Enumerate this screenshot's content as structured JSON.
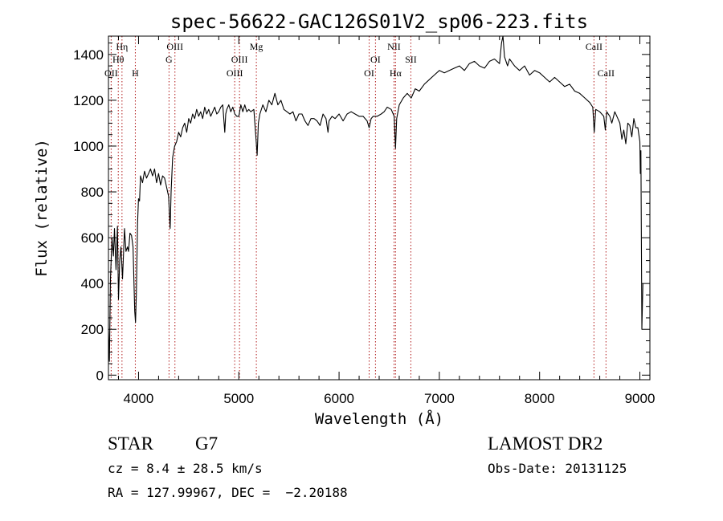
{
  "chart_data": {
    "type": "line",
    "title": "spec-56622-GAC126S01V2_sp06-223.fits",
    "xlabel": "Wavelength (Å)",
    "ylabel": "Flux (relative)",
    "xlim": [
      3700,
      9100
    ],
    "ylim": [
      -20,
      1480
    ],
    "xticks": [
      4000,
      5000,
      6000,
      7000,
      8000,
      9000
    ],
    "yticks": [
      0,
      200,
      400,
      600,
      800,
      1000,
      1200,
      1400
    ],
    "xtick_labels": [
      "4000",
      "5000",
      "6000",
      "7000",
      "8000",
      "9000"
    ],
    "ytick_labels": [
      "0",
      "200",
      "400",
      "600",
      "800",
      "1000",
      "1200",
      "1400"
    ],
    "grid": false,
    "series": [
      {
        "color": "#000000",
        "points": [
          [
            3700,
            200
          ],
          [
            3710,
            60
          ],
          [
            3720,
            420
          ],
          [
            3735,
            600
          ],
          [
            3750,
            520
          ],
          [
            3760,
            640
          ],
          [
            3775,
            460
          ],
          [
            3790,
            650
          ],
          [
            3800,
            330
          ],
          [
            3812,
            500
          ],
          [
            3825,
            560
          ],
          [
            3840,
            420
          ],
          [
            3860,
            640
          ],
          [
            3875,
            540
          ],
          [
            3890,
            560
          ],
          [
            3900,
            540
          ],
          [
            3915,
            620
          ],
          [
            3930,
            610
          ],
          [
            3945,
            560
          ],
          [
            3955,
            400
          ],
          [
            3962,
            280
          ],
          [
            3970,
            230
          ],
          [
            3978,
            350
          ],
          [
            3990,
            660
          ],
          [
            4000,
            770
          ],
          [
            4010,
            760
          ],
          [
            4020,
            870
          ],
          [
            4040,
            840
          ],
          [
            4060,
            890
          ],
          [
            4080,
            860
          ],
          [
            4100,
            880
          ],
          [
            4120,
            900
          ],
          [
            4140,
            870
          ],
          [
            4160,
            900
          ],
          [
            4180,
            840
          ],
          [
            4200,
            880
          ],
          [
            4220,
            830
          ],
          [
            4240,
            870
          ],
          [
            4260,
            860
          ],
          [
            4280,
            820
          ],
          [
            4300,
            780
          ],
          [
            4315,
            640
          ],
          [
            4325,
            800
          ],
          [
            4340,
            950
          ],
          [
            4360,
            1000
          ],
          [
            4380,
            1020
          ],
          [
            4400,
            1060
          ],
          [
            4420,
            1040
          ],
          [
            4440,
            1080
          ],
          [
            4460,
            1100
          ],
          [
            4480,
            1060
          ],
          [
            4500,
            1120
          ],
          [
            4520,
            1100
          ],
          [
            4540,
            1140
          ],
          [
            4560,
            1120
          ],
          [
            4580,
            1160
          ],
          [
            4600,
            1130
          ],
          [
            4620,
            1150
          ],
          [
            4640,
            1120
          ],
          [
            4660,
            1170
          ],
          [
            4680,
            1140
          ],
          [
            4700,
            1160
          ],
          [
            4720,
            1130
          ],
          [
            4740,
            1150
          ],
          [
            4760,
            1170
          ],
          [
            4780,
            1140
          ],
          [
            4800,
            1150
          ],
          [
            4820,
            1170
          ],
          [
            4840,
            1180
          ],
          [
            4860,
            1060
          ],
          [
            4870,
            1140
          ],
          [
            4880,
            1160
          ],
          [
            4900,
            1180
          ],
          [
            4920,
            1150
          ],
          [
            4940,
            1170
          ],
          [
            4960,
            1140
          ],
          [
            4980,
            1130
          ],
          [
            5000,
            1130
          ],
          [
            5020,
            1180
          ],
          [
            5040,
            1150
          ],
          [
            5060,
            1180
          ],
          [
            5080,
            1150
          ],
          [
            5100,
            1160
          ],
          [
            5120,
            1150
          ],
          [
            5150,
            1160
          ],
          [
            5170,
            1040
          ],
          [
            5183,
            960
          ],
          [
            5195,
            1100
          ],
          [
            5210,
            1140
          ],
          [
            5240,
            1180
          ],
          [
            5270,
            1150
          ],
          [
            5300,
            1200
          ],
          [
            5330,
            1180
          ],
          [
            5360,
            1230
          ],
          [
            5390,
            1180
          ],
          [
            5420,
            1200
          ],
          [
            5450,
            1160
          ],
          [
            5480,
            1150
          ],
          [
            5510,
            1140
          ],
          [
            5540,
            1150
          ],
          [
            5570,
            1110
          ],
          [
            5600,
            1140
          ],
          [
            5630,
            1140
          ],
          [
            5660,
            1110
          ],
          [
            5690,
            1090
          ],
          [
            5720,
            1120
          ],
          [
            5750,
            1120
          ],
          [
            5780,
            1110
          ],
          [
            5810,
            1090
          ],
          [
            5840,
            1140
          ],
          [
            5870,
            1120
          ],
          [
            5890,
            1060
          ],
          [
            5900,
            1110
          ],
          [
            5930,
            1130
          ],
          [
            5960,
            1120
          ],
          [
            6000,
            1140
          ],
          [
            6040,
            1110
          ],
          [
            6080,
            1140
          ],
          [
            6120,
            1150
          ],
          [
            6160,
            1140
          ],
          [
            6200,
            1130
          ],
          [
            6240,
            1130
          ],
          [
            6280,
            1110
          ],
          [
            6300,
            1080
          ],
          [
            6320,
            1120
          ],
          [
            6340,
            1130
          ],
          [
            6380,
            1130
          ],
          [
            6420,
            1140
          ],
          [
            6450,
            1150
          ],
          [
            6480,
            1170
          ],
          [
            6520,
            1160
          ],
          [
            6550,
            1130
          ],
          [
            6563,
            990
          ],
          [
            6575,
            1120
          ],
          [
            6600,
            1180
          ],
          [
            6640,
            1210
          ],
          [
            6680,
            1230
          ],
          [
            6720,
            1210
          ],
          [
            6760,
            1250
          ],
          [
            6800,
            1240
          ],
          [
            6850,
            1270
          ],
          [
            6900,
            1290
          ],
          [
            6950,
            1310
          ],
          [
            7000,
            1330
          ],
          [
            7050,
            1320
          ],
          [
            7100,
            1330
          ],
          [
            7150,
            1340
          ],
          [
            7200,
            1350
          ],
          [
            7250,
            1330
          ],
          [
            7300,
            1360
          ],
          [
            7350,
            1370
          ],
          [
            7400,
            1350
          ],
          [
            7450,
            1340
          ],
          [
            7500,
            1370
          ],
          [
            7550,
            1380
          ],
          [
            7600,
            1360
          ],
          [
            7620,
            1450
          ],
          [
            7635,
            1480
          ],
          [
            7650,
            1390
          ],
          [
            7680,
            1350
          ],
          [
            7700,
            1380
          ],
          [
            7750,
            1350
          ],
          [
            7800,
            1330
          ],
          [
            7850,
            1350
          ],
          [
            7900,
            1310
          ],
          [
            7950,
            1330
          ],
          [
            8000,
            1320
          ],
          [
            8050,
            1300
          ],
          [
            8100,
            1280
          ],
          [
            8150,
            1300
          ],
          [
            8200,
            1280
          ],
          [
            8250,
            1260
          ],
          [
            8300,
            1270
          ],
          [
            8350,
            1240
          ],
          [
            8400,
            1230
          ],
          [
            8450,
            1210
          ],
          [
            8500,
            1190
          ],
          [
            8530,
            1170
          ],
          [
            8545,
            1060
          ],
          [
            8560,
            1160
          ],
          [
            8600,
            1150
          ],
          [
            8640,
            1130
          ],
          [
            8655,
            1070
          ],
          [
            8670,
            1150
          ],
          [
            8700,
            1130
          ],
          [
            8720,
            1100
          ],
          [
            8750,
            1150
          ],
          [
            8780,
            1120
          ],
          [
            8800,
            1100
          ],
          [
            8820,
            1030
          ],
          [
            8840,
            1070
          ],
          [
            8860,
            1010
          ],
          [
            8880,
            1100
          ],
          [
            8900,
            1090
          ],
          [
            8920,
            1040
          ],
          [
            8940,
            1120
          ],
          [
            8960,
            1080
          ],
          [
            8980,
            1080
          ],
          [
            9000,
            1020
          ],
          [
            9005,
            880
          ],
          [
            9010,
            980
          ],
          [
            9020,
            200
          ],
          [
            9030,
            400
          ]
        ]
      }
    ],
    "line_markers": [
      {
        "label": "OII",
        "wave": 3727,
        "row": 3,
        "above": false
      },
      {
        "label": "Hθ",
        "wave": 3798,
        "row": 2,
        "above": false
      },
      {
        "label": "Hη",
        "wave": 3835,
        "row": 1,
        "above": false
      },
      {
        "label": "H",
        "wave": 3968,
        "row": 3,
        "above": true
      },
      {
        "label": "OIII",
        "wave": 4363,
        "row": 1,
        "above": false
      },
      {
        "label": "G",
        "wave": 4304,
        "row": 2,
        "above": true
      },
      {
        "label": "OIII",
        "wave": 4959,
        "row": 3,
        "above": false
      },
      {
        "label": "OIII",
        "wave": 5007,
        "row": 2,
        "above": false
      },
      {
        "label": "Mg",
        "wave": 5175,
        "row": 1,
        "above": false
      },
      {
        "label": "OI",
        "wave": 6300,
        "row": 3,
        "above": false
      },
      {
        "label": "OI",
        "wave": 6363,
        "row": 2,
        "above": false
      },
      {
        "label": "NII",
        "wave": 6548,
        "row": 1,
        "above": false
      },
      {
        "label": "Hα",
        "wave": 6563,
        "row": 3,
        "above": true
      },
      {
        "label": "SII",
        "wave": 6716,
        "row": 2,
        "above": false
      },
      {
        "label": "CaII",
        "wave": 8542,
        "row": 1,
        "above": false
      },
      {
        "label": "CaII",
        "wave": 8662,
        "row": 3,
        "above": false
      }
    ],
    "marker_color": "#b01818"
  },
  "info": {
    "object_class": "STAR",
    "subclass": "G7",
    "survey": "LAMOST DR2",
    "redshift": "cz = 8.4 ± 28.5 km/s",
    "obs_date": "Obs-Date: 20131125",
    "coords": "RA = 127.99967, DEC =  −2.20188"
  }
}
